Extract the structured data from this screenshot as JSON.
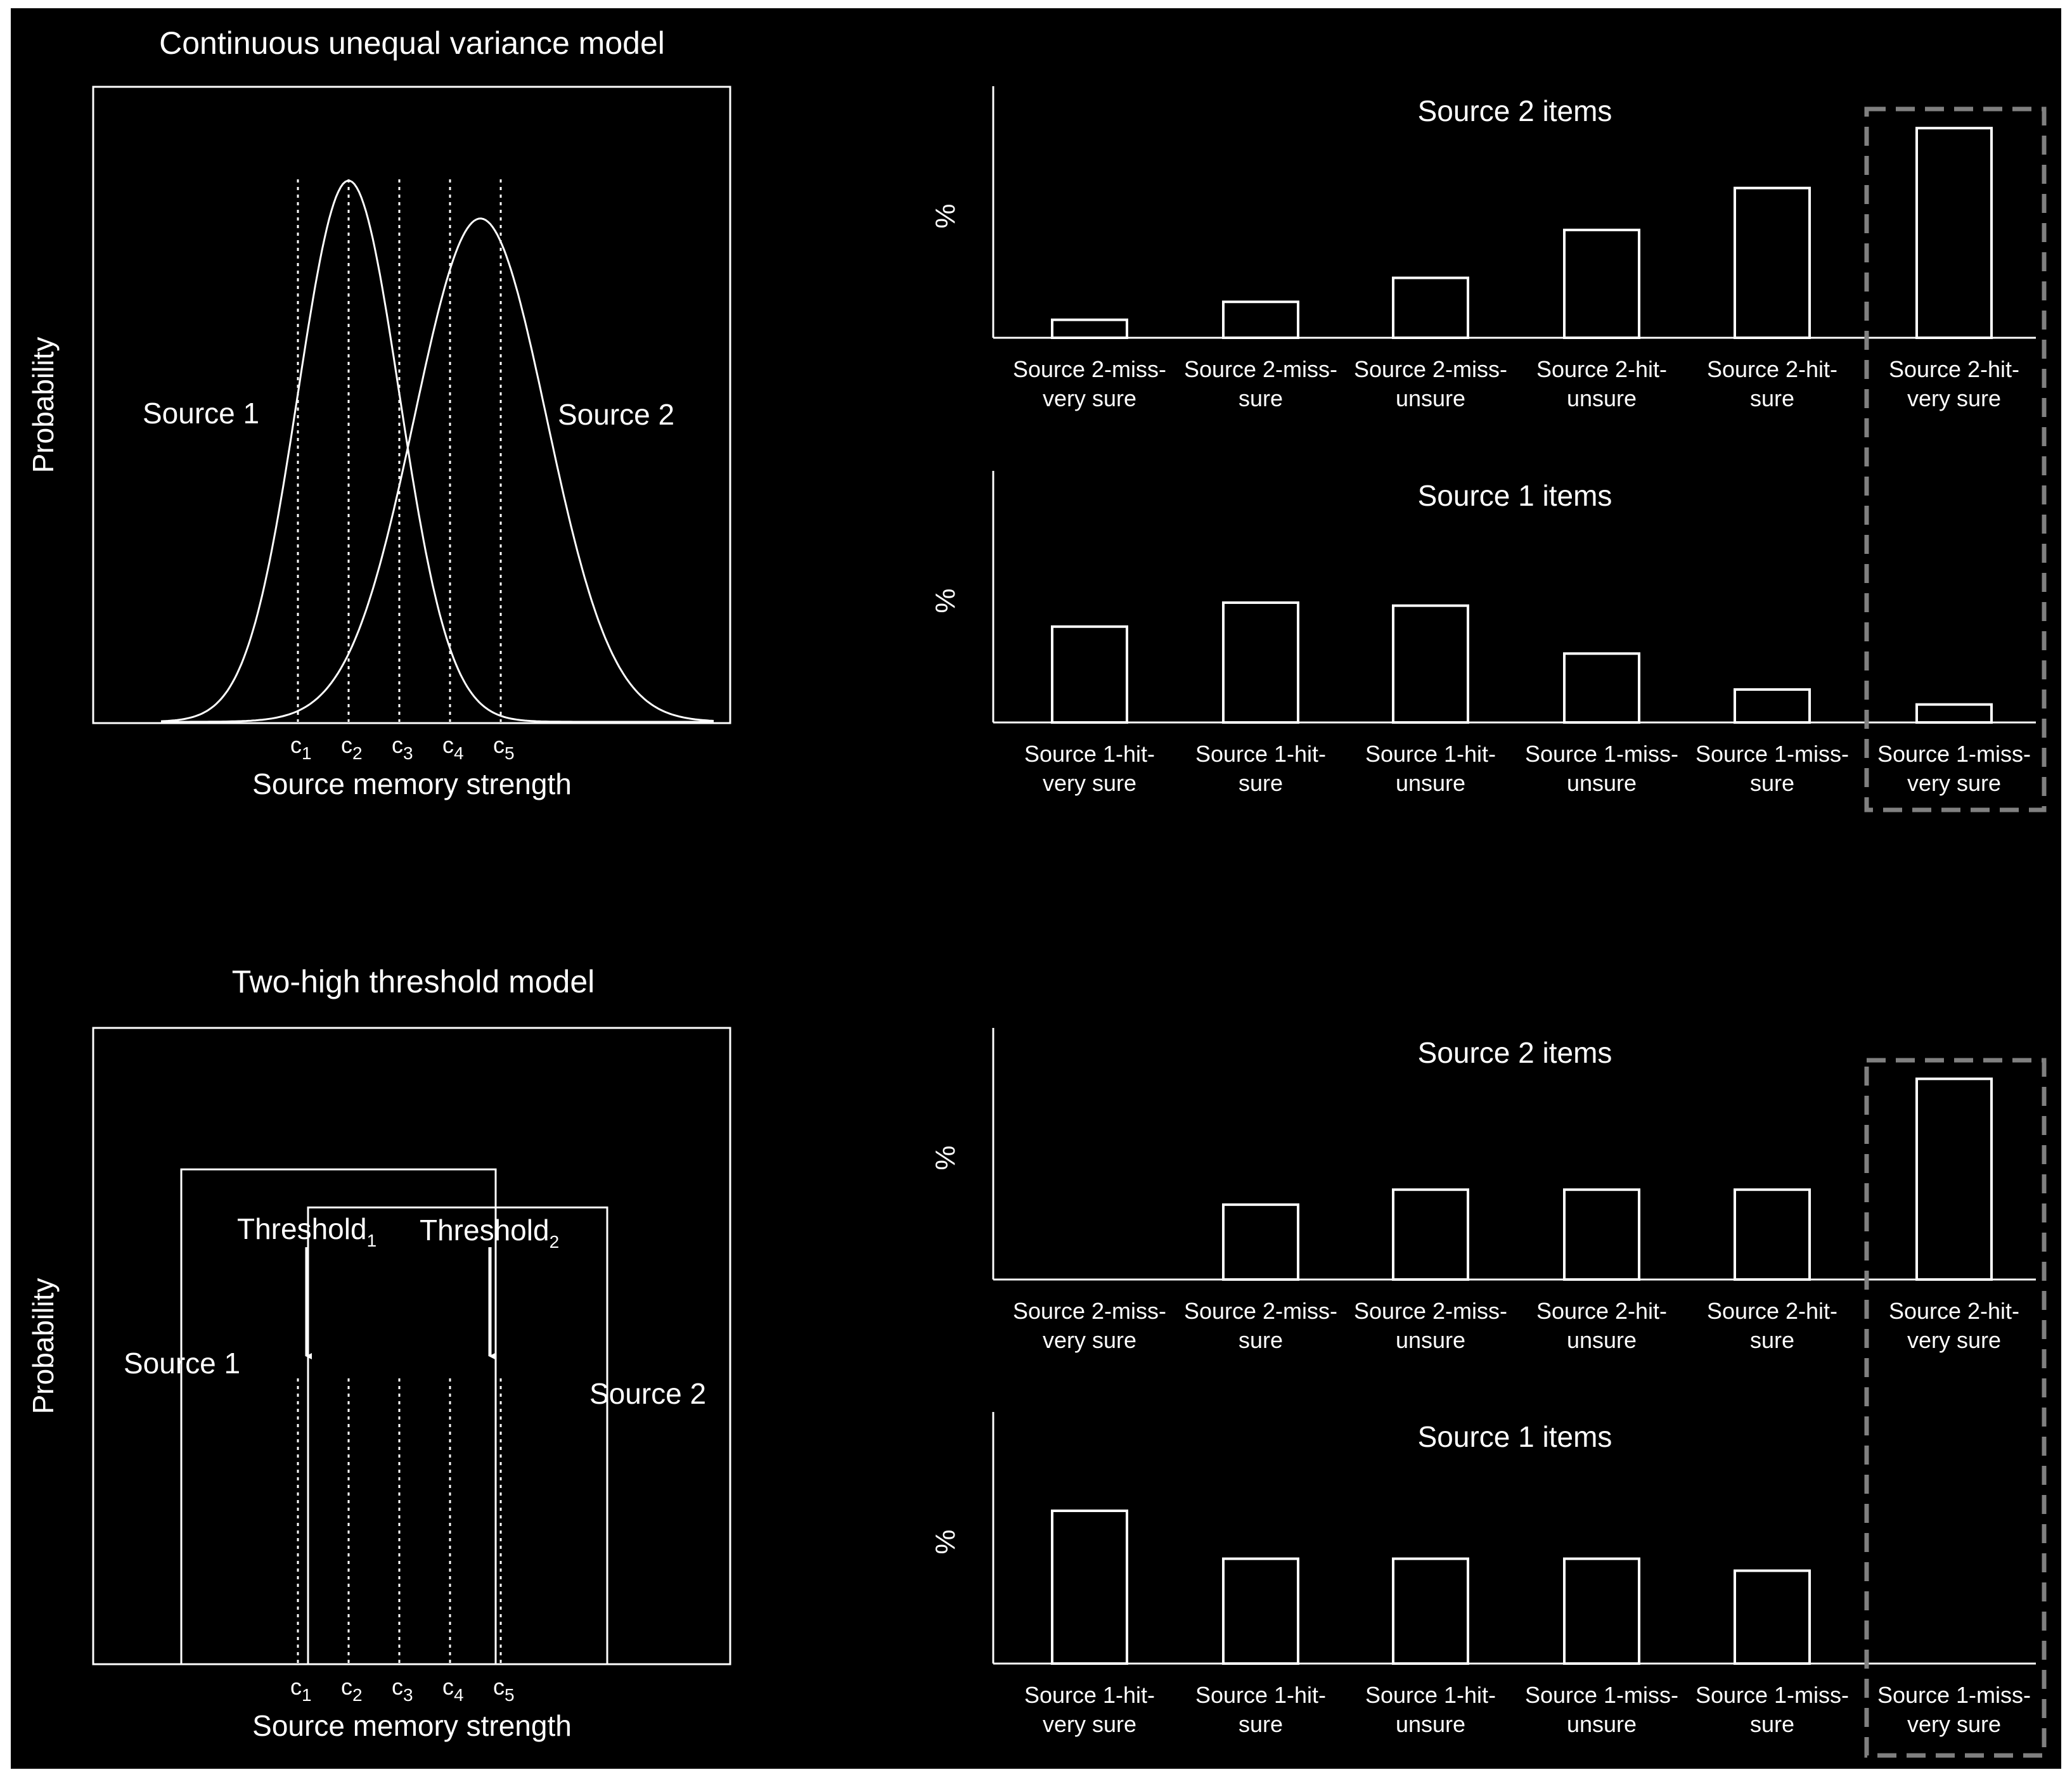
{
  "colors": {
    "background": "#000000",
    "foreground": "#ffffff",
    "highlight_box": "#808080"
  },
  "criteria": [
    {
      "letter": "c",
      "sub": "1"
    },
    {
      "letter": "c",
      "sub": "2"
    },
    {
      "letter": "c",
      "sub": "3"
    },
    {
      "letter": "c",
      "sub": "4"
    },
    {
      "letter": "c",
      "sub": "5"
    }
  ],
  "top_model": {
    "title": "Continuous unequal variance model",
    "ylabel": "Probability",
    "xlabel": "Source memory strength",
    "source1_label": "Source 1",
    "source2_label": "Source 2",
    "source1_curve": {
      "mean": 2.0,
      "sd": 1.0
    },
    "source2_curve": {
      "mean": 4.6,
      "sd": 1.3,
      "peak_ratio": 0.93
    },
    "criteria_positions": [
      1.0,
      2.0,
      3.0,
      4.0,
      5.0
    ]
  },
  "bottom_model": {
    "title": "Two-high threshold model",
    "ylabel": "Probability",
    "xlabel": "Source memory strength",
    "source1_label": "Source 1",
    "source2_label": "Source 2",
    "threshold1_label": "Threshold",
    "threshold1_sub": "1",
    "threshold2_label": "Threshold",
    "threshold2_sub": "2",
    "source1_range": [
      -1.3,
      4.9
    ],
    "source2_range": [
      1.2,
      7.1
    ],
    "source1_height": 0.78,
    "source2_height": 0.72,
    "criteria_positions": [
      1.0,
      2.0,
      3.0,
      4.0,
      5.0
    ]
  },
  "chart_data": [
    {
      "type": "bar",
      "title": "Source 2 items",
      "ylabel": "%",
      "categories": [
        "Source 2-miss- very sure",
        "Source 2-miss- sure",
        "Source 2-miss- unsure",
        "Source 2-hit- unsure",
        "Source 2-hit- sure",
        "Source 2-hit- very sure"
      ],
      "category_lines": [
        [
          "Source 2-miss-",
          "very sure"
        ],
        [
          "Source 2-miss-",
          "sure"
        ],
        [
          "Source 2-miss-",
          "unsure"
        ],
        [
          "Source 2-hit-",
          "unsure"
        ],
        [
          "Source 2-hit-",
          "sure"
        ],
        [
          "Source 2-hit-",
          "very sure"
        ]
      ],
      "values": [
        3,
        6,
        10,
        18,
        25,
        35
      ],
      "ylim": [
        0,
        42
      ],
      "highlight_index": 5
    },
    {
      "type": "bar",
      "title": "Source 1 items",
      "ylabel": "%",
      "categories": [
        "Source 1-hit- very sure",
        "Source 1-hit- sure",
        "Source 1-hit- unsure",
        "Source 1-miss- unsure",
        "Source 1-miss- sure",
        "Source 1-miss- very sure"
      ],
      "category_lines": [
        [
          "Source 1-hit-",
          "very sure"
        ],
        [
          "Source 1-hit-",
          "sure"
        ],
        [
          "Source 1-hit-",
          "unsure"
        ],
        [
          "Source 1-miss-",
          "unsure"
        ],
        [
          "Source 1-miss-",
          "sure"
        ],
        [
          "Source 1-miss-",
          "very sure"
        ]
      ],
      "values": [
        16,
        20,
        19.5,
        11.5,
        5.5,
        3
      ],
      "ylim": [
        0,
        42
      ],
      "highlight_index": 5
    },
    {
      "type": "bar",
      "title": "Source 2 items",
      "ylabel": "%",
      "categories": [
        "Source 2-miss- very sure",
        "Source 2-miss- sure",
        "Source 2-miss- unsure",
        "Source 2-hit- unsure",
        "Source 2-hit- sure",
        "Source 2-hit- very sure"
      ],
      "category_lines": [
        [
          "Source 2-miss-",
          "very sure"
        ],
        [
          "Source 2-miss-",
          "sure"
        ],
        [
          "Source 2-miss-",
          "unsure"
        ],
        [
          "Source 2-hit-",
          "unsure"
        ],
        [
          "Source 2-hit-",
          "sure"
        ],
        [
          "Source 2-hit-",
          "very sure"
        ]
      ],
      "values": [
        0,
        12.5,
        15,
        15,
        15,
        33.5
      ],
      "ylim": [
        0,
        42
      ],
      "highlight_index": 5
    },
    {
      "type": "bar",
      "title": "Source 1 items",
      "ylabel": "%",
      "categories": [
        "Source 1-hit- very sure",
        "Source 1-hit- sure",
        "Source 1-hit- unsure",
        "Source 1-miss- unsure",
        "Source 1-miss- sure",
        "Source 1-miss- very sure"
      ],
      "category_lines": [
        [
          "Source 1-hit-",
          "very sure"
        ],
        [
          "Source 1-hit-",
          "sure"
        ],
        [
          "Source 1-hit-",
          "unsure"
        ],
        [
          "Source 1-miss-",
          "unsure"
        ],
        [
          "Source 1-miss-",
          "sure"
        ],
        [
          "Source 1-miss-",
          "very sure"
        ]
      ],
      "values": [
        25.5,
        17.5,
        17.5,
        17.5,
        15.5,
        0
      ],
      "ylim": [
        0,
        42
      ],
      "highlight_index": 5
    }
  ]
}
